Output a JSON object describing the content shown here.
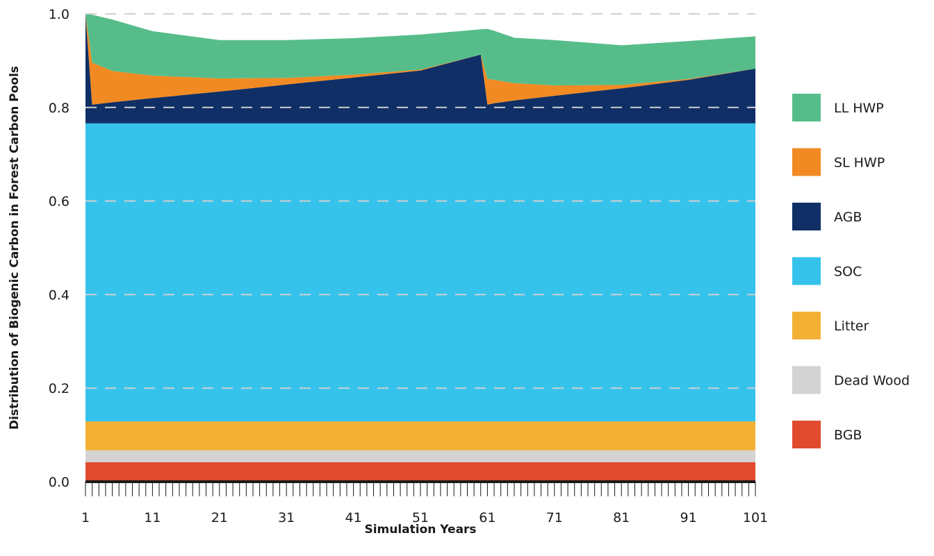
{
  "chart_data": {
    "type": "area",
    "stacked": true,
    "xlabel": "Simulation Years",
    "ylabel": "Distribution of Biogenic Carbon in Forest Carbon Pools",
    "x_ticks": [
      1,
      11,
      21,
      31,
      41,
      51,
      61,
      71,
      81,
      91,
      101
    ],
    "y_ticks": [
      "0.0",
      "0.2",
      "0.4",
      "0.6",
      "0.8",
      "1.0"
    ],
    "xlim": [
      1,
      101
    ],
    "ylim": [
      0,
      1.0
    ],
    "grid": "horizontal dashed",
    "legend_position": "right",
    "x": [
      1,
      2,
      5,
      11,
      21,
      31,
      41,
      51,
      60,
      61,
      62,
      65,
      71,
      81,
      91,
      101
    ],
    "series": [
      {
        "name": "BGB",
        "color": "#E04B2E",
        "values": [
          0.042,
          0.042,
          0.042,
          0.042,
          0.042,
          0.042,
          0.042,
          0.042,
          0.042,
          0.042,
          0.042,
          0.042,
          0.042,
          0.042,
          0.042,
          0.042
        ]
      },
      {
        "name": "Dead Wood",
        "color": "#D3D3D3",
        "values": [
          0.025,
          0.025,
          0.025,
          0.025,
          0.025,
          0.025,
          0.025,
          0.025,
          0.025,
          0.025,
          0.025,
          0.025,
          0.025,
          0.025,
          0.025,
          0.025
        ]
      },
      {
        "name": "Litter",
        "color": "#F2B035",
        "values": [
          0.062,
          0.062,
          0.062,
          0.062,
          0.062,
          0.062,
          0.062,
          0.062,
          0.062,
          0.062,
          0.062,
          0.062,
          0.062,
          0.062,
          0.062,
          0.062
        ]
      },
      {
        "name": "SOC",
        "color": "#35C3EC",
        "values": [
          0.637,
          0.637,
          0.637,
          0.637,
          0.637,
          0.637,
          0.637,
          0.637,
          0.637,
          0.637,
          0.637,
          0.637,
          0.637,
          0.637,
          0.637,
          0.637
        ]
      },
      {
        "name": "AGB",
        "color": "#0F2F66",
        "values": [
          0.234,
          0.04,
          0.045,
          0.054,
          0.068,
          0.083,
          0.098,
          0.113,
          0.147,
          0.04,
          0.043,
          0.049,
          0.059,
          0.075,
          0.093,
          0.117
        ]
      },
      {
        "name": "SL HWP",
        "color": "#F18A22",
        "values": [
          0.0,
          0.09,
          0.067,
          0.048,
          0.028,
          0.014,
          0.006,
          0.002,
          0.0,
          0.055,
          0.05,
          0.037,
          0.022,
          0.007,
          0.002,
          0.0
        ]
      },
      {
        "name": "LL HWP",
        "color": "#56BD8A",
        "values": [
          0.0,
          0.102,
          0.11,
          0.095,
          0.082,
          0.081,
          0.078,
          0.075,
          0.054,
          0.107,
          0.105,
          0.097,
          0.097,
          0.085,
          0.081,
          0.069
        ]
      }
    ]
  }
}
